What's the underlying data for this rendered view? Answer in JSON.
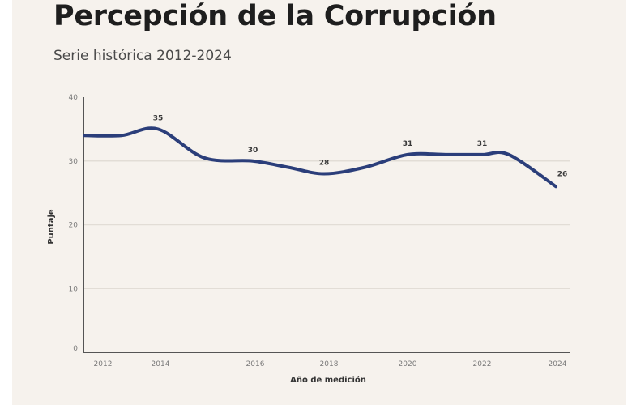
{
  "chart_data": {
    "type": "line",
    "title": "Percepción de la Corrupción",
    "subtitle": "Serie histórica 2012-2024",
    "xlabel": "Año de medición",
    "ylabel": "Puntaje",
    "ylim": [
      0,
      40
    ],
    "yticks": [
      0,
      10,
      20,
      30,
      40
    ],
    "xticks": [
      2012,
      2014,
      2016,
      2018,
      2020,
      2022,
      2024
    ],
    "grid": "horizontal",
    "legend": "none",
    "series": [
      {
        "name": "Puntaje",
        "color": "#2b3e7a",
        "x": [
          2012,
          2013,
          2014,
          2015,
          2016,
          2017,
          2018,
          2019,
          2020,
          2021,
          2022,
          2023,
          2024
        ],
        "values": [
          34,
          34,
          35,
          30.5,
          30,
          29,
          28,
          29,
          31,
          31,
          31,
          31,
          26
        ]
      }
    ],
    "data_labels": [
      {
        "x": 2014,
        "label": "35"
      },
      {
        "x": 2016,
        "label": "30"
      },
      {
        "x": 2018,
        "label": "28"
      },
      {
        "x": 2020,
        "label": "31"
      },
      {
        "x": 2022,
        "label": "31"
      },
      {
        "x": 2024,
        "label": "26"
      }
    ]
  }
}
